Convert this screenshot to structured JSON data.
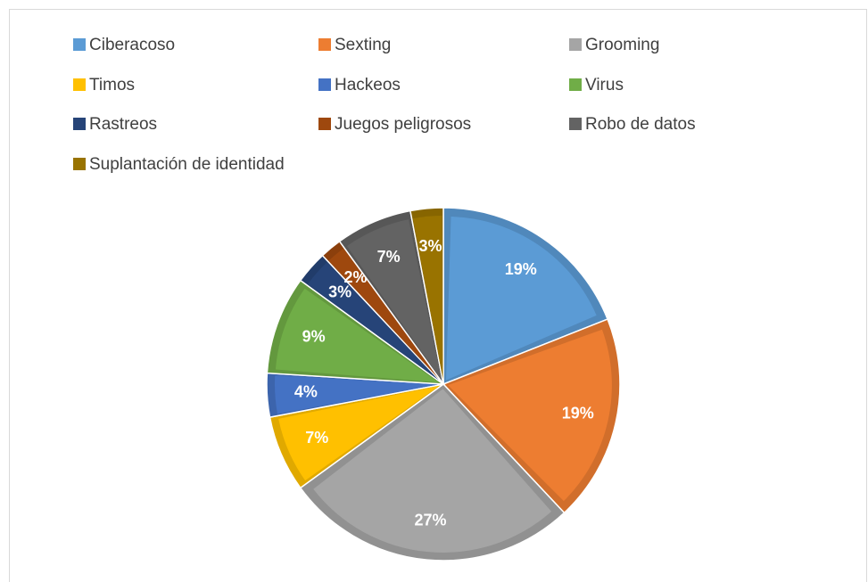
{
  "chart_data": {
    "type": "pie",
    "categories": [
      "Ciberacoso",
      "Sexting",
      "Grooming",
      "Timos",
      "Hackeos",
      "Virus",
      "Rastreos",
      "Juegos peligrosos",
      "Robo de datos",
      "Suplantación de identidad"
    ],
    "values": [
      19,
      19,
      27,
      7,
      4,
      9,
      3,
      2,
      7,
      3
    ],
    "value_labels": [
      "19%",
      "19%",
      "27%",
      "7%",
      "4%",
      "9%",
      "3%",
      "2%",
      "7%",
      "3%"
    ],
    "colors": [
      "#5b9bd5",
      "#ed7d31",
      "#a5a5a5",
      "#ffc000",
      "#4472c4",
      "#70ad47",
      "#264478",
      "#9e480e",
      "#636363",
      "#997300"
    ],
    "legend": "top"
  }
}
